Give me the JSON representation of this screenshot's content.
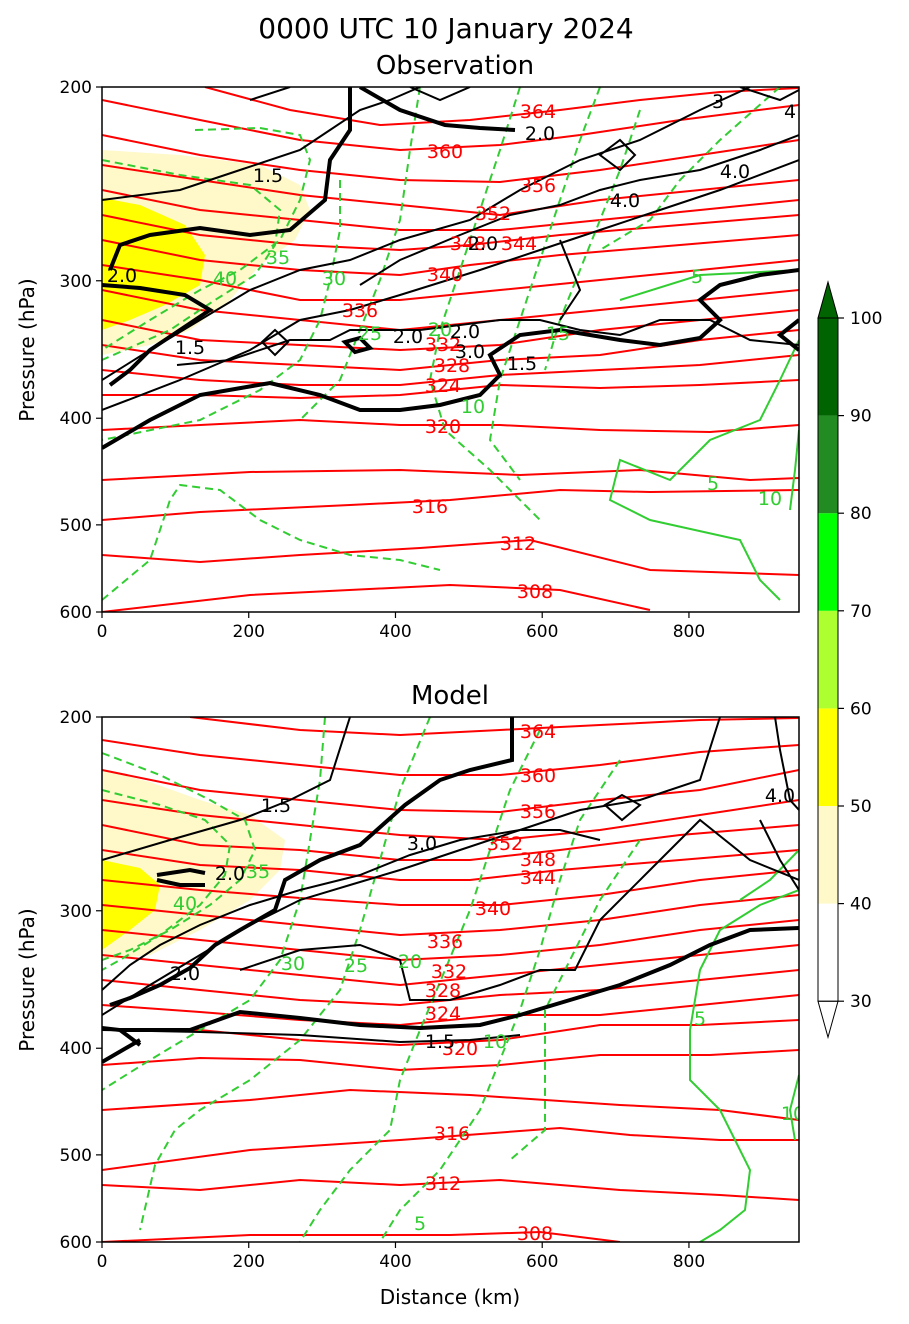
{
  "figure": {
    "title": "0000 UTC 10 January 2024"
  },
  "chart_data": [
    {
      "type": "contour",
      "panel": "observation",
      "title": "Observation",
      "xlabel": "",
      "ylabel": "Pressure (hPa)",
      "xlim": [
        0,
        950
      ],
      "ylim": [
        600,
        200
      ],
      "yscale": "log",
      "xticks": [
        "0",
        "200",
        "400",
        "600",
        "800"
      ],
      "yticks": [
        "200",
        "300",
        "400",
        "500",
        "600"
      ],
      "theta_labels": [
        "364",
        "360",
        "356",
        "352",
        "348",
        "344",
        "340",
        "336",
        "332",
        "328",
        "324",
        "320",
        "316",
        "312",
        "308"
      ],
      "pv_labels": [
        "1.5",
        "2.0",
        "2.0",
        "2.0",
        "3.0",
        "4.0",
        "4.0",
        "3",
        "4",
        "1.5",
        "2.0",
        "1.5",
        "2.0"
      ],
      "rh_labels": [
        "40",
        "35",
        "30",
        "25",
        "20",
        "15",
        "10",
        "5",
        "10",
        "5"
      ]
    },
    {
      "type": "contour",
      "panel": "model",
      "title": "Model",
      "xlabel": "Distance (km)",
      "ylabel": "Pressure (hPa)",
      "xlim": [
        0,
        950
      ],
      "ylim": [
        600,
        200
      ],
      "yscale": "log",
      "xticks": [
        "0",
        "200",
        "400",
        "600",
        "800"
      ],
      "yticks": [
        "200",
        "300",
        "400",
        "500",
        "600"
      ],
      "theta_labels": [
        "364",
        "360",
        "356",
        "352",
        "348",
        "344",
        "340",
        "336",
        "332",
        "328",
        "324",
        "320",
        "316",
        "312",
        "308"
      ],
      "pv_labels": [
        "1.5",
        "2.0",
        "3.0",
        "4.0",
        "2.0",
        "1.5"
      ],
      "rh_labels": [
        "40",
        "35",
        "30",
        "25",
        "20",
        "10",
        "5",
        "5",
        "10"
      ]
    }
  ],
  "colorbar": {
    "ticks": [
      "30",
      "40",
      "50",
      "60",
      "70",
      "80",
      "90",
      "100"
    ],
    "colors": [
      "#ffffff",
      "#fff8c8",
      "#ffff00",
      "#adff2f",
      "#00ff00",
      "#228b22",
      "#006400"
    ],
    "extend": "both"
  },
  "colors": {
    "theta": "#ff0000",
    "pv": "#000000",
    "rh": "#32cd32"
  }
}
